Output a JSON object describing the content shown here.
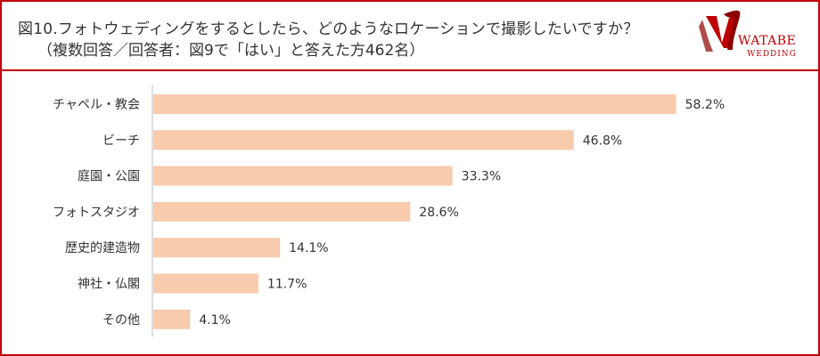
{
  "header": {
    "title": "図10.フォトウェディングをするとしたら、どのようなロケーションで撮影したいですか？",
    "subtitle": "（複数回答／回答者：図9で「はい」と答えた方462名）"
  },
  "logo": {
    "line1": "WATABE",
    "line2": "WEDDING",
    "color": "#c00000"
  },
  "colors": {
    "bar": "#f8cbad",
    "frame": "#c00000",
    "axis": "#bfbfbf"
  },
  "chart_data": {
    "type": "bar",
    "orientation": "horizontal",
    "categories": [
      "チャペル・教会",
      "ビーチ",
      "庭園・公園",
      "フォトスタジオ",
      "歴史的建造物",
      "神社・仏閣",
      "その他"
    ],
    "values": [
      58.2,
      46.8,
      33.3,
      28.6,
      14.1,
      11.7,
      4.1
    ],
    "value_suffix": "%",
    "xlim": [
      0,
      60
    ],
    "grid": false,
    "legend": "none"
  }
}
